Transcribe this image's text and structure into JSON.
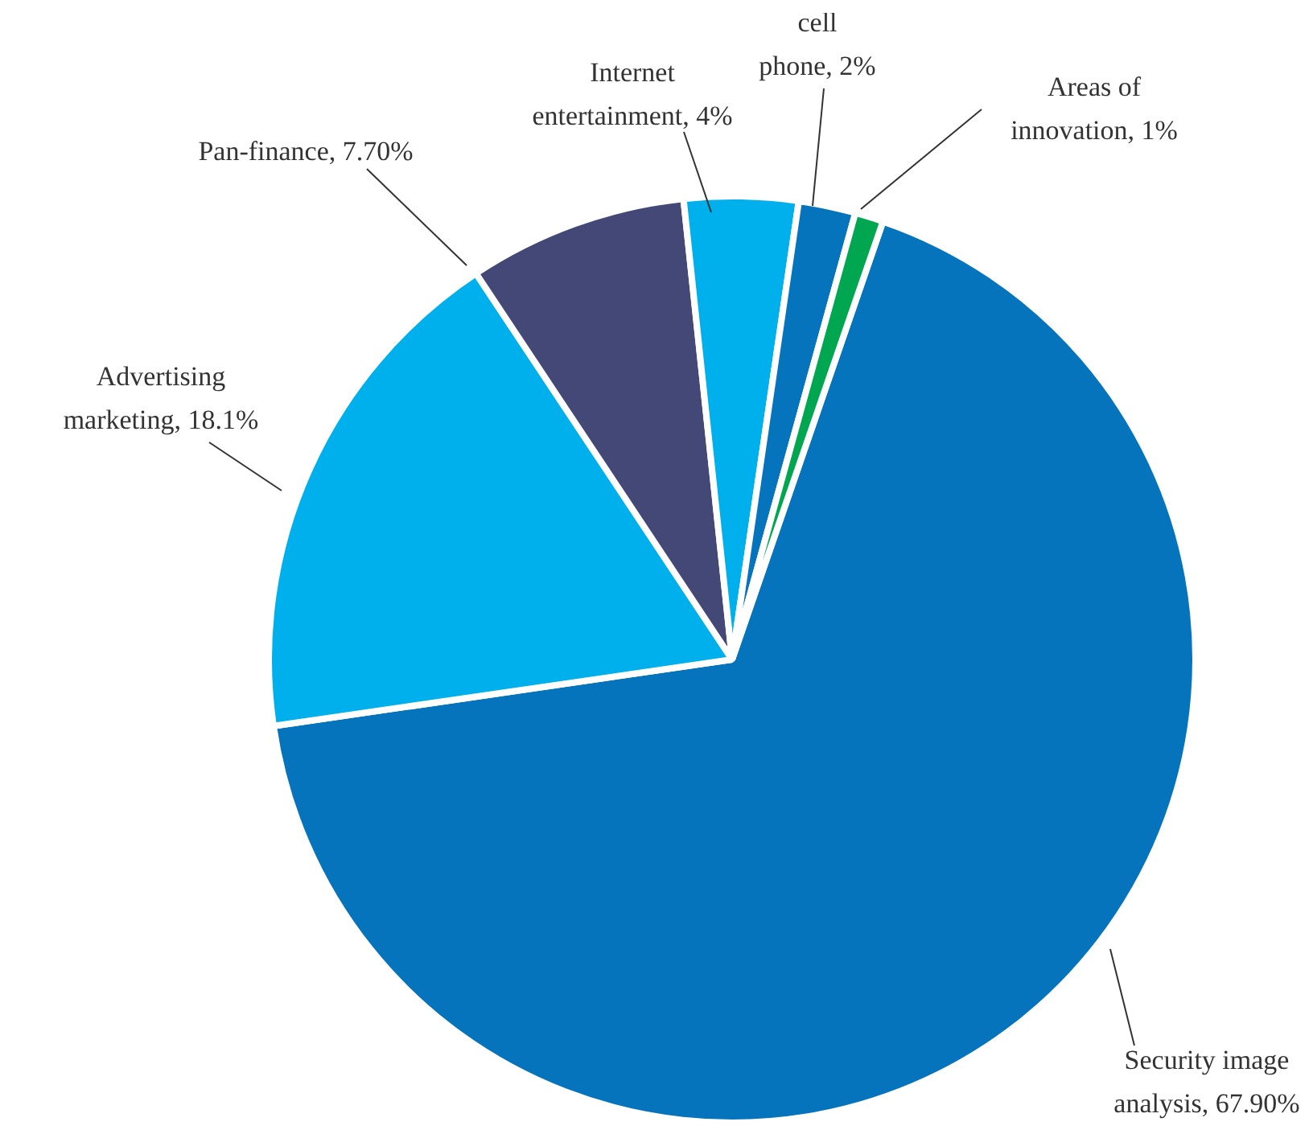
{
  "chart_data": {
    "type": "pie",
    "categories": [
      "Security image analysis",
      "Advertising marketing",
      "Pan-finance",
      "Internet entertainment",
      "cell phone",
      "Areas of innovation"
    ],
    "values": [
      67.9,
      18.1,
      7.7,
      4,
      2,
      1
    ],
    "value_labels": [
      "67.90%",
      "18.1%",
      "7.70%",
      "4%",
      "2%",
      "1%"
    ],
    "colors": [
      "#0674bc",
      "#00b0ec",
      "#434877",
      "#00b0ec",
      "#0674bc",
      "#00a650"
    ],
    "legend": false
  }
}
